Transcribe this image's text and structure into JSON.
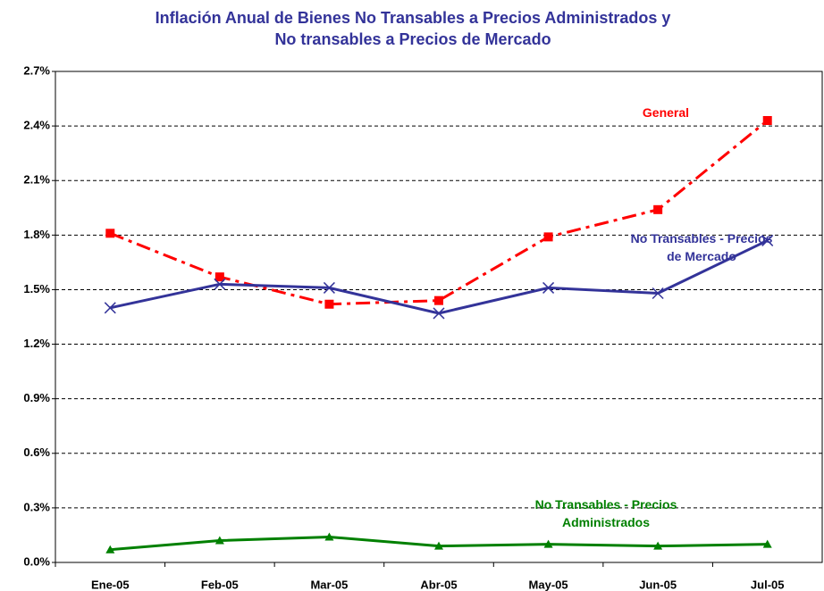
{
  "chart_data": {
    "type": "line",
    "title": "Inflación Anual de Bienes No Transables a Precios Administrados y No transables a Precios de Mercado",
    "categories": [
      "Ene-05",
      "Feb-05",
      "Mar-05",
      "Abr-05",
      "May-05",
      "Jun-05",
      "Jul-05"
    ],
    "series": [
      {
        "name": "General",
        "color": "#ff0000",
        "marker": "square",
        "dashed": true,
        "values": [
          1.81,
          1.57,
          1.42,
          1.44,
          1.79,
          1.94,
          2.43
        ]
      },
      {
        "name": "No Transables - Precios de Mercado",
        "color": "#333399",
        "marker": "x",
        "dashed": false,
        "values": [
          1.4,
          1.53,
          1.51,
          1.37,
          1.51,
          1.48,
          1.77
        ]
      },
      {
        "name": "No Transables - Precios Administrados",
        "color": "#008000",
        "marker": "triangle",
        "dashed": false,
        "values": [
          0.07,
          0.12,
          0.14,
          0.09,
          0.1,
          0.09,
          0.1
        ]
      }
    ],
    "ylim": [
      0,
      2.7
    ],
    "yticks": [
      {
        "value": 0,
        "label": "0.0%"
      },
      {
        "value": 0.3,
        "label": "0.3%"
      },
      {
        "value": 0.6,
        "label": "0.6%"
      },
      {
        "value": 0.9,
        "label": "0.9%"
      },
      {
        "value": 1.2,
        "label": "1.2%"
      },
      {
        "value": 1.5,
        "label": "1.5%"
      },
      {
        "value": 1.8,
        "label": "1.8%"
      },
      {
        "value": 2.1,
        "label": "2.1%"
      },
      {
        "value": 2.4,
        "label": "2.4%"
      },
      {
        "value": 2.7,
        "label": "2.7%"
      }
    ],
    "grid": true
  }
}
